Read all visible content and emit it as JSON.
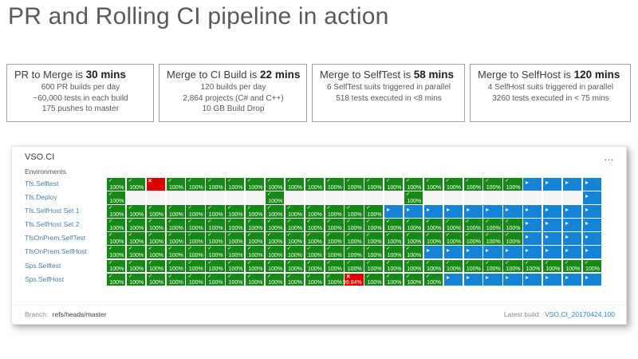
{
  "title": "PR and Rolling CI pipeline in action",
  "stats": [
    {
      "title_prefix": "PR to Merge is ",
      "title_bold": "30 mins",
      "lines": [
        "600 PR builds per day",
        "~60,000 tests in each build",
        "175 pushes to master"
      ]
    },
    {
      "title_prefix": "Merge to CI Build is ",
      "title_bold": "22 mins",
      "lines": [
        "120 builds per day",
        "2,864 projects (C# and C++)",
        "10 GB Build Drop"
      ]
    },
    {
      "title_prefix": "Merge to SelfTest is ",
      "title_bold": "58 mins",
      "lines": [
        "6 SelfTest suits triggered in parallel",
        "518 tests executed in <8 mins",
        ""
      ]
    },
    {
      "title_prefix": "Merge to SelfHost is ",
      "title_bold": "120 mins",
      "lines": [
        "4 SelfHost suits triggered in parallel",
        "3260 tests executed in < 75 mins",
        ""
      ]
    }
  ],
  "dashboard": {
    "app_title": "VSO.CI",
    "menu_icon": "…",
    "environments_label": "Environments",
    "colors": {
      "pass_green": "#168816",
      "fail_red": "#e10000",
      "running_blue": "#1484d8",
      "empty_gray": "#f4f4f4",
      "label_blue": "#4a7fae",
      "link_blue": "#2b88d8"
    },
    "cell_types": {
      "G": {
        "state": "passed",
        "color": "#168816",
        "pct": "100%",
        "icon": "check"
      },
      "B": {
        "state": "running",
        "color": "#1484d8",
        "pct": "",
        "icon": "play"
      },
      "R": {
        "state": "failed",
        "color": "#e10000",
        "pct": "",
        "icon": "fail"
      },
      "X": {
        "state": "failed",
        "color": "#e10000",
        "pct": "99.84%",
        "icon": "fail"
      },
      "E": {
        "state": "empty",
        "color": "#f4f4f4",
        "pct": "",
        "icon": ""
      }
    },
    "rows": [
      {
        "label": "Tfs.Selftest",
        "cells": "GGRGGGGGGGGGGGGGGGGGGBBBB"
      },
      {
        "label": "Tfs.Deploy",
        "cells": "GEEEEEEEGEEEEEEGEEEEEEEEB"
      },
      {
        "label": "Tfs.SelfHost Set 1",
        "cells": "GGGGGGGGGGGGGGBBBBBBBBBBB"
      },
      {
        "label": "Tfs.SelfHost Set 2",
        "cells": "GGGGGGGGGGGGGGGGGGGGGBBBB"
      },
      {
        "label": "TfsOnPrem.SelfTest",
        "cells": "GGGGGGGGGGGGGGGGGGGGGBBBB"
      },
      {
        "label": "TfsOnPrem.SelfHost",
        "cells": "GGGGGGGGGGGGGGGGBBBBBBBBB"
      },
      {
        "label": "Sps.Selftest",
        "cells": "GGGGGGGGGGGGGGGGGGGGGGGGG"
      },
      {
        "label": "Sps.SelfHost",
        "cells": "GGGGGGGGGGGGXGGGGBBBBBBBB"
      }
    ],
    "footer": {
      "branch_label": "Branch:",
      "branch_value": "refs/heads/master",
      "latest_build_label": "Latest build:",
      "latest_build_value": "VSO.CI_20170424.100"
    }
  }
}
